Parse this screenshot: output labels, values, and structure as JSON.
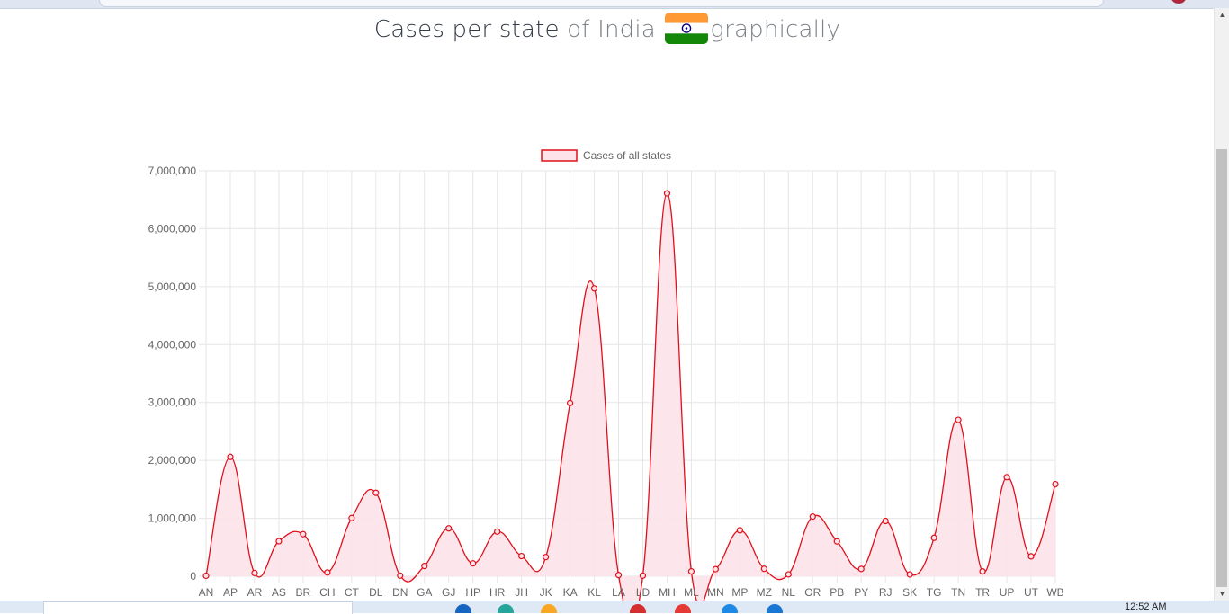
{
  "page": {
    "title_part1": "Cases per state",
    "title_part2": "of India",
    "title_part3": "graphically",
    "flag_icon": "india-flag-icon"
  },
  "taskbar": {
    "clock": "12:52 AM"
  },
  "colors": {
    "line": "#e0101a",
    "fill": "#fde2ea",
    "grid": "#e6e6e6",
    "tick": "#666666"
  },
  "chart_data": {
    "type": "line",
    "legend": "Cases of all states",
    "legend_position": "top-center",
    "grid": true,
    "curve": "smoothed",
    "filled": true,
    "ylim": [
      0,
      7000000
    ],
    "y_ticks": [
      "0",
      "1,000,000",
      "2,000,000",
      "3,000,000",
      "4,000,000",
      "5,000,000",
      "6,000,000",
      "7,000,000"
    ],
    "categories": [
      "AN",
      "AP",
      "AR",
      "AS",
      "BR",
      "CH",
      "CT",
      "DL",
      "DN",
      "GA",
      "GJ",
      "HP",
      "HR",
      "JH",
      "JK",
      "KA",
      "KL",
      "LA",
      "LD",
      "MH",
      "ML",
      "MN",
      "MP",
      "MZ",
      "NL",
      "OR",
      "PB",
      "PY",
      "RJ",
      "SK",
      "TG",
      "TN",
      "TR",
      "UP",
      "UT",
      "WB"
    ],
    "series": [
      {
        "name": "Cases of all states",
        "values": [
          7600,
          2060000,
          55000,
          605000,
          726000,
          65000,
          1005000,
          1440000,
          11000,
          177000,
          826000,
          222000,
          771000,
          348000,
          331000,
          2990000,
          4970000,
          21000,
          10300,
          6610000,
          84000,
          122000,
          793000,
          128000,
          32000,
          1030000,
          602000,
          126000,
          954000,
          31000,
          663000,
          2700000,
          84000,
          1710000,
          343000,
          1590000
        ]
      }
    ]
  }
}
